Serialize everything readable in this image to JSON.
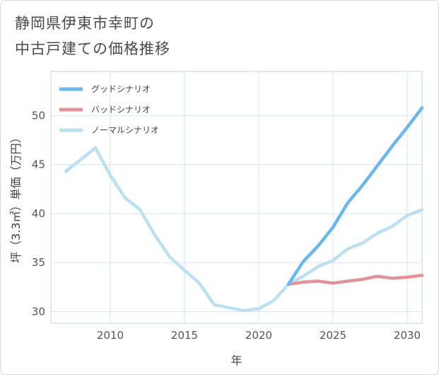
{
  "title_line1": "静岡県伊東市幸町の",
  "title_line2": "中古戸建ての価格推移",
  "chart_data": {
    "type": "line",
    "title": "静岡県伊東市幸町の中古戸建ての価格推移",
    "xlabel": "年",
    "ylabel": "坪（3.3㎡）単価（万円）",
    "xlim": [
      2006,
      2031
    ],
    "ylim": [
      28.8,
      54.5
    ],
    "xticks": [
      2010,
      2015,
      2020,
      2025,
      2030
    ],
    "yticks": [
      30,
      35,
      40,
      45,
      50
    ],
    "grid": true,
    "legend_position": "top-left",
    "series": [
      {
        "name": "グッドシナリオ",
        "color": "#6bb6ec",
        "x": [
          2022,
          2023,
          2024,
          2025,
          2026,
          2027,
          2028,
          2029,
          2030,
          2031
        ],
        "values": [
          32.8,
          35.1,
          36.7,
          38.6,
          41.1,
          42.9,
          44.9,
          46.9,
          48.8,
          50.8
        ]
      },
      {
        "name": "バッドシナリオ",
        "color": "#e0939b",
        "x": [
          2022,
          2023,
          2024,
          2025,
          2026,
          2027,
          2028,
          2029,
          2030,
          2031
        ],
        "values": [
          32.8,
          33.0,
          33.1,
          32.9,
          33.1,
          33.3,
          33.6,
          33.4,
          33.5,
          33.7
        ]
      },
      {
        "name": "ノーマルシナリオ",
        "color": "#bde0f0",
        "x": [
          2007,
          2008,
          2009,
          2010,
          2011,
          2012,
          2013,
          2014,
          2015,
          2016,
          2017,
          2018,
          2019,
          2020,
          2021,
          2022,
          2023,
          2024,
          2025,
          2026,
          2027,
          2028,
          2029,
          2030,
          2031
        ],
        "values": [
          44.3,
          45.5,
          46.7,
          43.9,
          41.6,
          40.4,
          37.8,
          35.6,
          34.2,
          32.9,
          30.7,
          30.4,
          30.1,
          30.3,
          31.1,
          32.8,
          33.6,
          34.6,
          35.2,
          36.4,
          37.0,
          38.0,
          38.7,
          39.8,
          40.4
        ]
      }
    ]
  }
}
